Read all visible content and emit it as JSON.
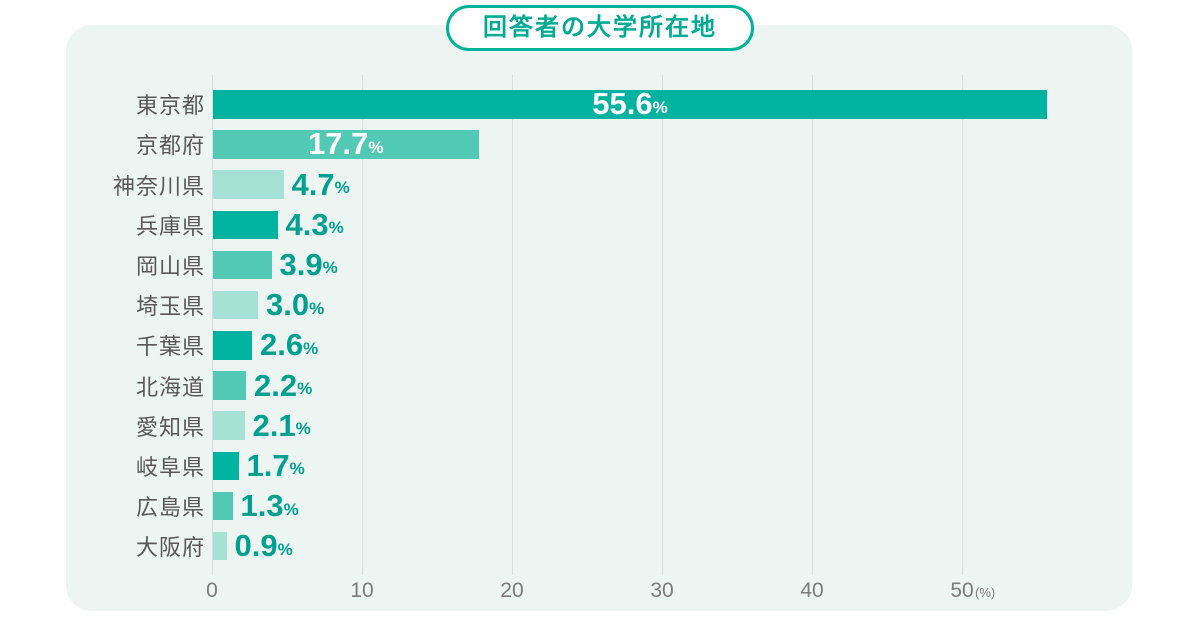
{
  "title": "回答者の大学所在地",
  "chart_data": {
    "type": "bar",
    "orientation": "horizontal",
    "title": "回答者の大学所在地",
    "categories": [
      "東京都",
      "京都府",
      "神奈川県",
      "兵庫県",
      "岡山県",
      "埼玉県",
      "千葉県",
      "北海道",
      "愛知県",
      "岐阜県",
      "広島県",
      "大阪府"
    ],
    "values": [
      55.6,
      17.7,
      4.7,
      4.3,
      3.9,
      3.0,
      2.6,
      2.2,
      2.1,
      1.7,
      1.3,
      0.9
    ],
    "value_labels": [
      "55.6",
      "17.7",
      "4.7",
      "4.3",
      "3.9",
      "3.0",
      "2.6",
      "2.2",
      "2.1",
      "1.7",
      "1.3",
      "0.9"
    ],
    "value_suffix": "%",
    "labels_inside_bar_count": 2,
    "x_tick_values": [
      0,
      10,
      20,
      30,
      40,
      50
    ],
    "x_tick_labels": [
      "0",
      "10",
      "20",
      "30",
      "40",
      "50"
    ],
    "axis_unit": "(%)",
    "xlim": [
      0,
      61
    ],
    "grid": true,
    "legend": "none",
    "bar_color_cycle": [
      "#00b3a0",
      "#52c9b4",
      "#a5e1d4"
    ]
  },
  "colors": {
    "panel_background": "#ecf5f2",
    "page_background": "#ffffff",
    "title_text": "#00ab96",
    "title_border": "#00b39b",
    "category_text": "#595757",
    "value_text_outside": "#00a090",
    "value_text_inside": "#ffffff",
    "tick_text": "#7b7b7b",
    "gridline": "#d9dedc"
  }
}
